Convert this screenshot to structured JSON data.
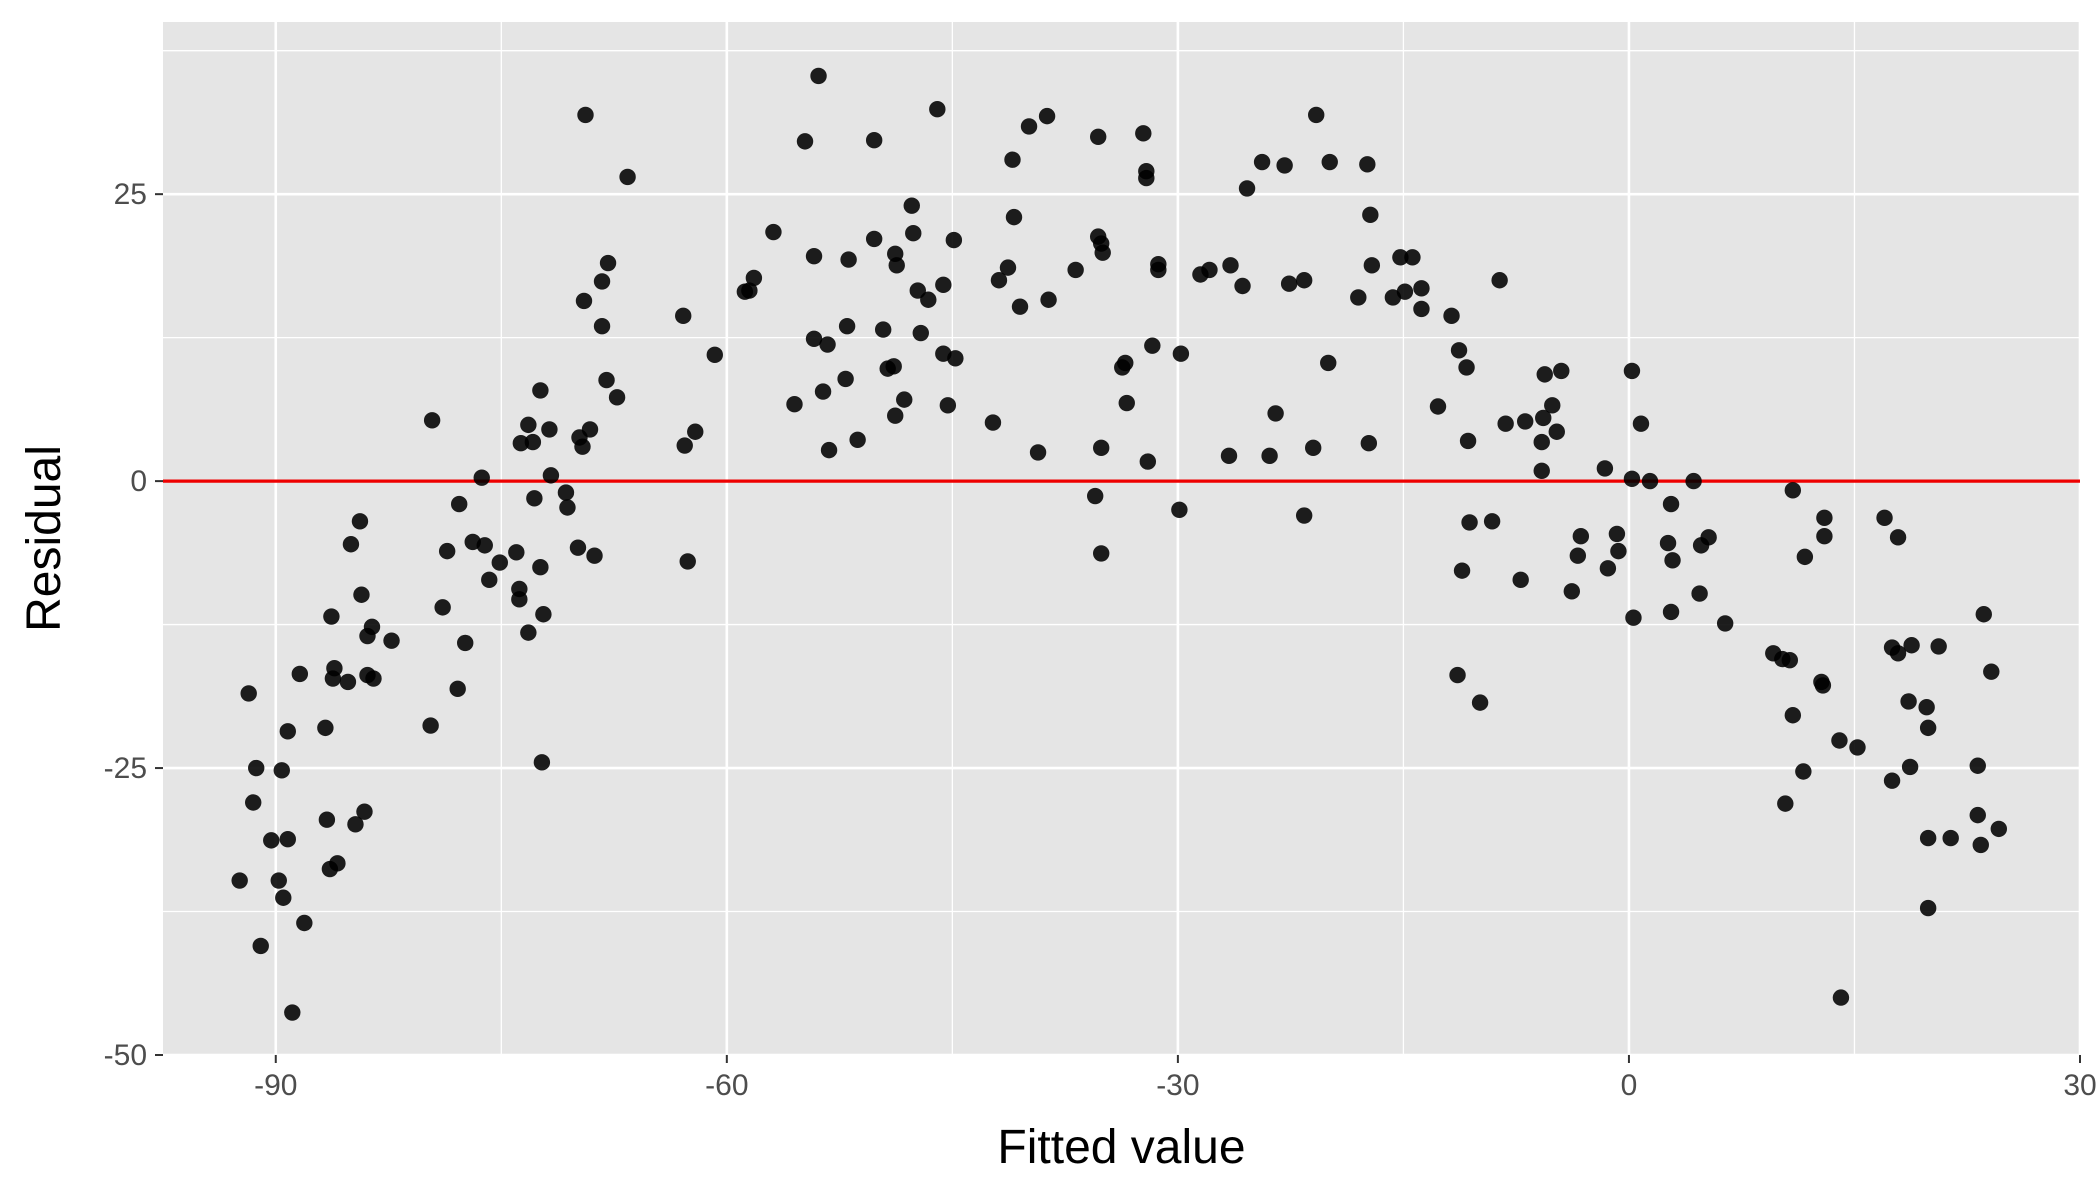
{
  "chart_data": {
    "type": "scatter",
    "title": "",
    "xlabel": "Fitted value",
    "ylabel": "Residual",
    "xlim": [
      -97.5,
      30
    ],
    "ylim": [
      -50,
      40
    ],
    "x_ticks": [
      -90,
      -60,
      -30,
      0,
      30
    ],
    "x_tick_labels": [
      "-90",
      "-60",
      "-30",
      "0",
      "30"
    ],
    "y_ticks": [
      -50,
      -25,
      0,
      25
    ],
    "y_tick_labels": [
      "-50",
      "-25",
      "0",
      "25"
    ],
    "grid": true,
    "panel_background": "#e5e5e5",
    "grid_color": "#ffffff",
    "point_color": "#000000",
    "reference_line": {
      "y": 0,
      "color": "#ee0000"
    },
    "points": [
      {
        "x": -92.4,
        "y": -34.8
      },
      {
        "x": -91.8,
        "y": -18.5
      },
      {
        "x": -91.5,
        "y": -28.0
      },
      {
        "x": -91.3,
        "y": -25.0
      },
      {
        "x": -91.0,
        "y": -40.5
      },
      {
        "x": -90.3,
        "y": -31.3
      },
      {
        "x": -89.8,
        "y": -34.8
      },
      {
        "x": -89.6,
        "y": -25.2
      },
      {
        "x": -89.5,
        "y": -36.3
      },
      {
        "x": -89.2,
        "y": -31.2
      },
      {
        "x": -89.2,
        "y": -21.8
      },
      {
        "x": -88.9,
        "y": -46.3
      },
      {
        "x": -88.4,
        "y": -16.8
      },
      {
        "x": -88.1,
        "y": -38.5
      },
      {
        "x": -86.7,
        "y": -21.5
      },
      {
        "x": -86.6,
        "y": -29.5
      },
      {
        "x": -86.4,
        "y": -33.8
      },
      {
        "x": -86.3,
        "y": -11.8
      },
      {
        "x": -86.2,
        "y": -17.2
      },
      {
        "x": -86.1,
        "y": -16.3
      },
      {
        "x": -85.9,
        "y": -33.3
      },
      {
        "x": -85.2,
        "y": -17.5
      },
      {
        "x": -85.0,
        "y": -5.5
      },
      {
        "x": -84.7,
        "y": -29.9
      },
      {
        "x": -84.4,
        "y": -3.5
      },
      {
        "x": -84.3,
        "y": -9.9
      },
      {
        "x": -84.1,
        "y": -28.8
      },
      {
        "x": -83.9,
        "y": -13.5
      },
      {
        "x": -83.9,
        "y": -16.9
      },
      {
        "x": -83.6,
        "y": -12.7
      },
      {
        "x": -83.5,
        "y": -17.2
      },
      {
        "x": -82.3,
        "y": -13.9
      },
      {
        "x": -79.7,
        "y": -21.3
      },
      {
        "x": -79.6,
        "y": 5.3
      },
      {
        "x": -78.9,
        "y": -11.0
      },
      {
        "x": -78.6,
        "y": -6.1
      },
      {
        "x": -77.9,
        "y": -18.1
      },
      {
        "x": -77.8,
        "y": -2.0
      },
      {
        "x": -77.4,
        "y": -14.1
      },
      {
        "x": -76.9,
        "y": -5.3
      },
      {
        "x": -76.3,
        "y": 0.3
      },
      {
        "x": -76.1,
        "y": -5.6
      },
      {
        "x": -75.8,
        "y": -8.6
      },
      {
        "x": -75.1,
        "y": -7.1
      },
      {
        "x": -74.0,
        "y": -6.2
      },
      {
        "x": -73.8,
        "y": -9.4
      },
      {
        "x": -73.8,
        "y": -10.3
      },
      {
        "x": -73.7,
        "y": 3.3
      },
      {
        "x": -73.2,
        "y": 4.9
      },
      {
        "x": -73.2,
        "y": -13.2
      },
      {
        "x": -72.9,
        "y": 3.4
      },
      {
        "x": -72.8,
        "y": -1.5
      },
      {
        "x": -72.4,
        "y": -7.5
      },
      {
        "x": -72.4,
        "y": 7.9
      },
      {
        "x": -72.2,
        "y": -11.6
      },
      {
        "x": -72.3,
        "y": -24.5
      },
      {
        "x": -71.8,
        "y": 4.5
      },
      {
        "x": -71.7,
        "y": 0.5
      },
      {
        "x": -70.7,
        "y": -1.0
      },
      {
        "x": -70.6,
        "y": -2.3
      },
      {
        "x": -69.9,
        "y": -5.8
      },
      {
        "x": -69.8,
        "y": 3.8
      },
      {
        "x": -69.6,
        "y": 3.0
      },
      {
        "x": -69.5,
        "y": 15.7
      },
      {
        "x": -69.4,
        "y": 31.9
      },
      {
        "x": -69.1,
        "y": 4.5
      },
      {
        "x": -68.8,
        "y": -6.5
      },
      {
        "x": -68.3,
        "y": 17.4
      },
      {
        "x": -68.3,
        "y": 13.5
      },
      {
        "x": -68.0,
        "y": 8.8
      },
      {
        "x": -67.9,
        "y": 19.0
      },
      {
        "x": -67.3,
        "y": 7.3
      },
      {
        "x": -66.6,
        "y": 26.5
      },
      {
        "x": -62.9,
        "y": 14.4
      },
      {
        "x": -62.8,
        "y": 3.1
      },
      {
        "x": -62.6,
        "y": -7.0
      },
      {
        "x": -62.1,
        "y": 4.3
      },
      {
        "x": -60.8,
        "y": 11.0
      },
      {
        "x": -58.8,
        "y": 16.5
      },
      {
        "x": -58.5,
        "y": 16.6
      },
      {
        "x": -58.2,
        "y": 17.7
      },
      {
        "x": -56.9,
        "y": 21.7
      },
      {
        "x": -55.5,
        "y": 6.7
      },
      {
        "x": -54.8,
        "y": 29.6
      },
      {
        "x": -54.2,
        "y": 19.6
      },
      {
        "x": -54.2,
        "y": 12.4
      },
      {
        "x": -53.9,
        "y": 35.3
      },
      {
        "x": -53.6,
        "y": 7.8
      },
      {
        "x": -53.3,
        "y": 11.9
      },
      {
        "x": -53.2,
        "y": 2.7
      },
      {
        "x": -52.1,
        "y": 8.9
      },
      {
        "x": -52.0,
        "y": 13.5
      },
      {
        "x": -51.9,
        "y": 19.3
      },
      {
        "x": -51.3,
        "y": 3.6
      },
      {
        "x": -50.2,
        "y": 29.7
      },
      {
        "x": -50.2,
        "y": 21.1
      },
      {
        "x": -49.6,
        "y": 13.2
      },
      {
        "x": -49.3,
        "y": 9.8
      },
      {
        "x": -48.9,
        "y": 10.0
      },
      {
        "x": -48.8,
        "y": 5.7
      },
      {
        "x": -48.7,
        "y": 18.8
      },
      {
        "x": -48.8,
        "y": 19.8
      },
      {
        "x": -48.2,
        "y": 7.1
      },
      {
        "x": -47.7,
        "y": 24.0
      },
      {
        "x": -47.6,
        "y": 21.6
      },
      {
        "x": -47.3,
        "y": 16.6
      },
      {
        "x": -47.1,
        "y": 12.9
      },
      {
        "x": -46.6,
        "y": 15.8
      },
      {
        "x": -46.0,
        "y": 32.4
      },
      {
        "x": -45.6,
        "y": 17.1
      },
      {
        "x": -45.6,
        "y": 11.1
      },
      {
        "x": -45.3,
        "y": 6.6
      },
      {
        "x": -44.9,
        "y": 21.0
      },
      {
        "x": -44.8,
        "y": 10.7
      },
      {
        "x": -42.3,
        "y": 5.1
      },
      {
        "x": -41.9,
        "y": 17.5
      },
      {
        "x": -41.3,
        "y": 18.6
      },
      {
        "x": -41.0,
        "y": 28.0
      },
      {
        "x": -40.9,
        "y": 23.0
      },
      {
        "x": -40.5,
        "y": 15.2
      },
      {
        "x": -39.9,
        "y": 30.9
      },
      {
        "x": -39.3,
        "y": 2.5
      },
      {
        "x": -38.7,
        "y": 31.8
      },
      {
        "x": -38.6,
        "y": 15.8
      },
      {
        "x": -36.8,
        "y": 18.4
      },
      {
        "x": -35.5,
        "y": -1.3
      },
      {
        "x": -35.3,
        "y": 30.0
      },
      {
        "x": -35.3,
        "y": 21.3
      },
      {
        "x": -35.1,
        "y": 20.7
      },
      {
        "x": -35.0,
        "y": 19.9
      },
      {
        "x": -35.1,
        "y": -6.3
      },
      {
        "x": -35.1,
        "y": 2.9
      },
      {
        "x": -33.7,
        "y": 9.9
      },
      {
        "x": -33.5,
        "y": 10.3
      },
      {
        "x": -33.4,
        "y": 6.8
      },
      {
        "x": -32.3,
        "y": 30.3
      },
      {
        "x": -32.1,
        "y": 27.0
      },
      {
        "x": -32.1,
        "y": 26.4
      },
      {
        "x": -32.0,
        "y": 1.7
      },
      {
        "x": -31.7,
        "y": 11.8
      },
      {
        "x": -31.3,
        "y": 18.9
      },
      {
        "x": -31.3,
        "y": 18.4
      },
      {
        "x": -29.9,
        "y": -2.5
      },
      {
        "x": -29.8,
        "y": 11.1
      },
      {
        "x": -28.5,
        "y": 18.0
      },
      {
        "x": -27.9,
        "y": 18.4
      },
      {
        "x": -26.6,
        "y": 2.2
      },
      {
        "x": -26.5,
        "y": 18.8
      },
      {
        "x": -25.7,
        "y": 17.0
      },
      {
        "x": -25.4,
        "y": 25.5
      },
      {
        "x": -24.4,
        "y": 27.8
      },
      {
        "x": -23.9,
        "y": 2.2
      },
      {
        "x": -23.5,
        "y": 5.9
      },
      {
        "x": -22.9,
        "y": 27.5
      },
      {
        "x": -22.6,
        "y": 17.2
      },
      {
        "x": -21.6,
        "y": 17.5
      },
      {
        "x": -21.6,
        "y": -3.0
      },
      {
        "x": -21.0,
        "y": 2.9
      },
      {
        "x": -20.8,
        "y": 31.9
      },
      {
        "x": -20.0,
        "y": 10.3
      },
      {
        "x": -19.9,
        "y": 27.8
      },
      {
        "x": -18.0,
        "y": 16.0
      },
      {
        "x": -17.4,
        "y": 27.6
      },
      {
        "x": -17.3,
        "y": 3.3
      },
      {
        "x": -17.2,
        "y": 23.2
      },
      {
        "x": -17.1,
        "y": 18.8
      },
      {
        "x": -15.7,
        "y": 16.0
      },
      {
        "x": -15.2,
        "y": 19.5
      },
      {
        "x": -14.9,
        "y": 16.5
      },
      {
        "x": -14.4,
        "y": 19.5
      },
      {
        "x": -13.8,
        "y": 16.8
      },
      {
        "x": -13.8,
        "y": 15.0
      },
      {
        "x": -12.7,
        "y": 6.5
      },
      {
        "x": -11.8,
        "y": 14.4
      },
      {
        "x": -11.4,
        "y": -16.9
      },
      {
        "x": -11.3,
        "y": 11.4
      },
      {
        "x": -11.1,
        "y": -7.8
      },
      {
        "x": -10.8,
        "y": 9.9
      },
      {
        "x": -10.7,
        "y": 3.5
      },
      {
        "x": -10.6,
        "y": -3.6
      },
      {
        "x": -9.9,
        "y": -19.3
      },
      {
        "x": -9.1,
        "y": -3.5
      },
      {
        "x": -8.6,
        "y": 17.5
      },
      {
        "x": -8.2,
        "y": 5.0
      },
      {
        "x": -7.2,
        "y": -8.6
      },
      {
        "x": -6.9,
        "y": 5.2
      },
      {
        "x": -5.7,
        "y": 5.5
      },
      {
        "x": -5.8,
        "y": 0.9
      },
      {
        "x": -5.8,
        "y": 3.4
      },
      {
        "x": -5.6,
        "y": 9.3
      },
      {
        "x": -5.1,
        "y": 6.6
      },
      {
        "x": -4.8,
        "y": 4.3
      },
      {
        "x": -4.5,
        "y": 9.6
      },
      {
        "x": -3.8,
        "y": -9.6
      },
      {
        "x": -3.4,
        "y": -6.5
      },
      {
        "x": -3.2,
        "y": -4.8
      },
      {
        "x": -1.6,
        "y": 1.1
      },
      {
        "x": -1.4,
        "y": -7.6
      },
      {
        "x": -0.8,
        "y": -4.6
      },
      {
        "x": -0.7,
        "y": -6.1
      },
      {
        "x": 0.2,
        "y": 9.6
      },
      {
        "x": 0.2,
        "y": 0.2
      },
      {
        "x": 0.3,
        "y": -11.9
      },
      {
        "x": 0.8,
        "y": 5.0
      },
      {
        "x": 1.4,
        "y": 0.0
      },
      {
        "x": 2.6,
        "y": -5.4
      },
      {
        "x": 2.8,
        "y": -11.4
      },
      {
        "x": 2.8,
        "y": -2.0
      },
      {
        "x": 2.9,
        "y": -6.9
      },
      {
        "x": 4.3,
        "y": 0.0
      },
      {
        "x": 4.7,
        "y": -9.8
      },
      {
        "x": 4.8,
        "y": -5.6
      },
      {
        "x": 5.3,
        "y": -4.9
      },
      {
        "x": 6.4,
        "y": -12.4
      },
      {
        "x": 9.6,
        "y": -15.0
      },
      {
        "x": 10.2,
        "y": -15.5
      },
      {
        "x": 10.4,
        "y": -28.1
      },
      {
        "x": 10.7,
        "y": -15.6
      },
      {
        "x": 10.9,
        "y": -20.4
      },
      {
        "x": 10.9,
        "y": -0.8
      },
      {
        "x": 11.6,
        "y": -25.3
      },
      {
        "x": 11.7,
        "y": -6.6
      },
      {
        "x": 12.8,
        "y": -17.5
      },
      {
        "x": 12.9,
        "y": -17.8
      },
      {
        "x": 13.0,
        "y": -3.2
      },
      {
        "x": 13.0,
        "y": -4.8
      },
      {
        "x": 14.1,
        "y": -45.0
      },
      {
        "x": 14.0,
        "y": -22.6
      },
      {
        "x": 15.2,
        "y": -23.2
      },
      {
        "x": 17.0,
        "y": -3.2
      },
      {
        "x": 17.5,
        "y": -26.1
      },
      {
        "x": 17.5,
        "y": -14.5
      },
      {
        "x": 17.9,
        "y": -15.0
      },
      {
        "x": 17.9,
        "y": -4.9
      },
      {
        "x": 18.6,
        "y": -19.2
      },
      {
        "x": 18.7,
        "y": -24.9
      },
      {
        "x": 18.8,
        "y": -14.3
      },
      {
        "x": 19.8,
        "y": -19.7
      },
      {
        "x": 19.9,
        "y": -21.5
      },
      {
        "x": 19.9,
        "y": -31.1
      },
      {
        "x": 19.9,
        "y": -37.2
      },
      {
        "x": 20.6,
        "y": -14.4
      },
      {
        "x": 21.4,
        "y": -31.1
      },
      {
        "x": 23.2,
        "y": -24.8
      },
      {
        "x": 23.2,
        "y": -29.1
      },
      {
        "x": 23.4,
        "y": -31.7
      },
      {
        "x": 23.6,
        "y": -11.6
      },
      {
        "x": 24.1,
        "y": -16.6
      },
      {
        "x": 24.6,
        "y": -30.3
      }
    ]
  }
}
